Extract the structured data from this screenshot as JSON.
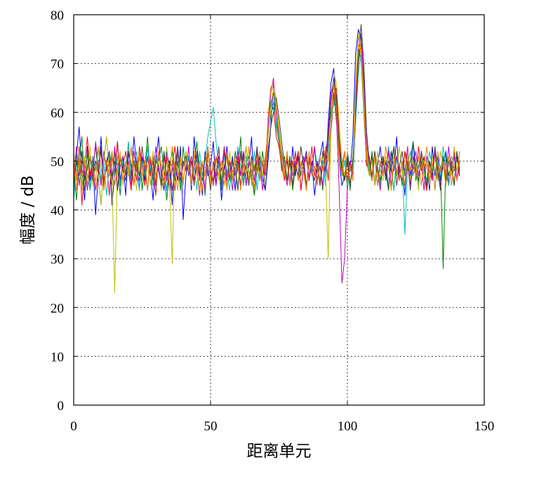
{
  "chart_data": {
    "type": "line",
    "xlabel": "距离单元",
    "ylabel": "幅度 / dB",
    "xlim": [
      0,
      150
    ],
    "ylim": [
      0,
      80
    ],
    "x_ticks": [
      "0",
      "50",
      "100",
      "150"
    ],
    "y_ticks": [
      "0",
      "10",
      "20",
      "30",
      "40",
      "50",
      "60",
      "70",
      "80"
    ],
    "grid": true,
    "x_range_of_data": [
      0,
      141
    ],
    "peaks": [
      {
        "x": 73,
        "y": 67
      },
      {
        "x": 95,
        "y": 69
      },
      {
        "x": 105,
        "y": 78
      }
    ],
    "series": [
      {
        "color": "#0000ff",
        "values": [
          44,
          51,
          57,
          48,
          42,
          53,
          46,
          50,
          39,
          47,
          55,
          44,
          50,
          52,
          41,
          48,
          54,
          46,
          50,
          43,
          52,
          47,
          55,
          49,
          44,
          51,
          46,
          53,
          48,
          42,
          50,
          55,
          47,
          44,
          52,
          49,
          41,
          50,
          46,
          53,
          38,
          47,
          51,
          44,
          55,
          48,
          50,
          43,
          52,
          47,
          49,
          54,
          45,
          50,
          42,
          48,
          53,
          46,
          51,
          44,
          50,
          47,
          52,
          45,
          49,
          55,
          43,
          48,
          51,
          46,
          44,
          50,
          57,
          66,
          60,
          55,
          52,
          48,
          50,
          45,
          53,
          47,
          51,
          44,
          49,
          52,
          46,
          50,
          43,
          48,
          51,
          54,
          47,
          58,
          66,
          69,
          62,
          50,
          45,
          47,
          52,
          48,
          55,
          72,
          77,
          75,
          66,
          52,
          48,
          51,
          45,
          49,
          53,
          47,
          50,
          44,
          52,
          48,
          55,
          46,
          50,
          43,
          51,
          47,
          54,
          49,
          45,
          52,
          48,
          50,
          44,
          53,
          47,
          51,
          46,
          49,
          52,
          45,
          50,
          48,
          51,
          47
        ]
      },
      {
        "color": "#008000",
        "values": [
          48,
          42,
          50,
          55,
          46,
          52,
          44,
          49,
          53,
          47,
          41,
          50,
          55,
          48,
          45,
          52,
          49,
          43,
          51,
          47,
          54,
          46,
          50,
          48,
          52,
          44,
          49,
          55,
          47,
          51,
          45,
          50,
          53,
          48,
          42,
          49,
          52,
          46,
          50,
          44,
          53,
          48,
          51,
          45,
          49,
          54,
          47,
          50,
          43,
          52,
          48,
          46,
          51,
          49,
          44,
          53,
          47,
          50,
          46,
          52,
          48,
          55,
          45,
          49,
          51,
          47,
          43,
          50,
          46,
          52,
          48,
          58,
          62,
          64,
          57,
          54,
          48,
          51,
          46,
          50,
          44,
          49,
          52,
          47,
          51,
          45,
          50,
          48,
          53,
          46,
          49,
          44,
          52,
          55,
          60,
          64,
          58,
          52,
          48,
          46,
          50,
          44,
          51,
          60,
          73,
          71,
          60,
          50,
          47,
          52,
          45,
          49,
          46,
          51,
          48,
          44,
          50,
          53,
          47,
          49,
          45,
          52,
          48,
          50,
          54,
          46,
          49,
          51,
          47,
          44,
          50,
          48,
          52,
          46,
          49,
          28,
          51,
          47,
          50,
          45,
          52,
          48
        ]
      },
      {
        "color": "#ff0000",
        "values": [
          50,
          46,
          53,
          41,
          49,
          55,
          47,
          51,
          44,
          48,
          52,
          46,
          50,
          43,
          51,
          47,
          54,
          45,
          49,
          52,
          48,
          44,
          50,
          46,
          53,
          49,
          45,
          51,
          47,
          50,
          43,
          52,
          48,
          46,
          51,
          44,
          49,
          53,
          47,
          50,
          45,
          52,
          48,
          51,
          46,
          49,
          43,
          50,
          47,
          53,
          48,
          45,
          51,
          49,
          46,
          52,
          44,
          50,
          48,
          47,
          51,
          45,
          49,
          53,
          46,
          50,
          44,
          52,
          48,
          50,
          47,
          55,
          60,
          61,
          55,
          53,
          49,
          46,
          51,
          45,
          50,
          48,
          52,
          44,
          49,
          51,
          46,
          53,
          47,
          50,
          45,
          49,
          52,
          46,
          56,
          63,
          65,
          55,
          49,
          52,
          46,
          50,
          47,
          62,
          70,
          74,
          62,
          49,
          51,
          46,
          52,
          48,
          45,
          50,
          47,
          53,
          49,
          44,
          51,
          48,
          46,
          52,
          50,
          45,
          49,
          47,
          53,
          48,
          51,
          44,
          50,
          46,
          52,
          49,
          47,
          51,
          45,
          50,
          48,
          52,
          46,
          49
        ]
      },
      {
        "color": "#00bfbf",
        "values": [
          42,
          49,
          52,
          45,
          50,
          47,
          44,
          51,
          48,
          53,
          46,
          50,
          43,
          49,
          52,
          47,
          51,
          45,
          50,
          48,
          54,
          46,
          49,
          52,
          44,
          50,
          47,
          53,
          49,
          45,
          51,
          48,
          46,
          52,
          44,
          50,
          49,
          47,
          53,
          45,
          50,
          48,
          51,
          46,
          49,
          44,
          52,
          47,
          50,
          55,
          58,
          61,
          54,
          49,
          46,
          51,
          48,
          44,
          50,
          47,
          53,
          49,
          45,
          51,
          48,
          46,
          52,
          44,
          50,
          47,
          51,
          56,
          59,
          62,
          58,
          55,
          50,
          47,
          52,
          45,
          49,
          51,
          46,
          50,
          48,
          44,
          51,
          47,
          53,
          49,
          46,
          50,
          45,
          52,
          58,
          62,
          60,
          51,
          47,
          50,
          44,
          49,
          46,
          58,
          68,
          72,
          64,
          52,
          48,
          46,
          51,
          49,
          45,
          50,
          47,
          53,
          48,
          44,
          51,
          46,
          50,
          35,
          49,
          52,
          47,
          50,
          45,
          51,
          48,
          46,
          52,
          49,
          44,
          50,
          47,
          53,
          48,
          45,
          51,
          49,
          46,
          52
        ]
      },
      {
        "color": "#bf00bf",
        "values": [
          47,
          53,
          45,
          50,
          48,
          44,
          51,
          47,
          54,
          49,
          45,
          52,
          48,
          50,
          46,
          53,
          44,
          49,
          51,
          47,
          50,
          45,
          52,
          48,
          46,
          51,
          49,
          44,
          50,
          47,
          53,
          48,
          45,
          51,
          46,
          50,
          49,
          44,
          52,
          47,
          50,
          48,
          53,
          45,
          49,
          51,
          46,
          50,
          44,
          52,
          47,
          49,
          45,
          51,
          48,
          53,
          46,
          50,
          44,
          49,
          52,
          47,
          51,
          45,
          50,
          48,
          46,
          52,
          49,
          44,
          50,
          57,
          64,
          67,
          60,
          56,
          51,
          48,
          45,
          50,
          47,
          52,
          46,
          49,
          51,
          44,
          50,
          48,
          53,
          46,
          49,
          45,
          51,
          56,
          64,
          66,
          59,
          44,
          25,
          30,
          45,
          50,
          47,
          64,
          75,
          76,
          67,
          54,
          49,
          46,
          51,
          48,
          44,
          50,
          47,
          52,
          45,
          49,
          51,
          46,
          50,
          48,
          53,
          45,
          49,
          52,
          47,
          50,
          44,
          51,
          48,
          46,
          52,
          49,
          45,
          50,
          47,
          53,
          48,
          51,
          46,
          50
        ]
      },
      {
        "color": "#bfbf00",
        "values": [
          52,
          46,
          49,
          44,
          51,
          48,
          53,
          45,
          50,
          47,
          41,
          50,
          55,
          48,
          46,
          23,
          49,
          52,
          45,
          50,
          47,
          53,
          48,
          44,
          51,
          46,
          50,
          49,
          45,
          52,
          47,
          50,
          44,
          48,
          53,
          46,
          29,
          51,
          47,
          50,
          45,
          52,
          48,
          46,
          51,
          49,
          44,
          50,
          47,
          53,
          45,
          49,
          51,
          46,
          50,
          48,
          44,
          52,
          47,
          49,
          45,
          51,
          48,
          53,
          46,
          50,
          44,
          49,
          52,
          47,
          51,
          55,
          61,
          65,
          63,
          57,
          52,
          48,
          46,
          51,
          45,
          50,
          47,
          53,
          49,
          44,
          51,
          48,
          46,
          50,
          45,
          52,
          48,
          30,
          58,
          68,
          66,
          58,
          50,
          47,
          52,
          45,
          49,
          66,
          76,
          73,
          63,
          51,
          47,
          50,
          45,
          52,
          48,
          46,
          51,
          49,
          44,
          50,
          47,
          53,
          48,
          45,
          51,
          46,
          50,
          49,
          44,
          52,
          47,
          50,
          45,
          51,
          48,
          46,
          52,
          49,
          45,
          50,
          47,
          53,
          48,
          51
        ]
      },
      {
        "color": "#404040",
        "values": [
          45,
          50,
          47,
          52,
          44,
          49,
          51,
          46,
          50,
          48,
          53,
          45,
          49,
          52,
          47,
          50,
          44,
          51,
          48,
          46,
          52,
          49,
          45,
          50,
          47,
          53,
          48,
          44,
          51,
          46,
          50,
          49,
          45,
          52,
          47,
          50,
          44,
          48,
          53,
          46,
          49,
          51,
          47,
          50,
          45,
          52,
          48,
          46,
          51,
          49,
          44,
          50,
          47,
          53,
          45,
          49,
          51,
          46,
          50,
          48,
          44,
          52,
          47,
          49,
          45,
          51,
          48,
          53,
          46,
          50,
          44,
          52,
          57,
          60,
          63,
          59,
          54,
          49,
          46,
          51,
          45,
          50,
          47,
          53,
          49,
          44,
          51,
          48,
          46,
          50,
          45,
          52,
          48,
          54,
          62,
          67,
          63,
          53,
          49,
          46,
          51,
          45,
          50,
          60,
          70,
          78,
          70,
          56,
          50,
          47,
          52,
          45,
          49,
          51,
          46,
          50,
          48,
          53,
          45,
          49,
          52,
          47,
          50,
          44,
          51,
          48,
          46,
          52,
          49,
          45,
          50,
          47,
          53,
          48,
          44,
          51,
          46,
          50,
          49,
          45,
          52,
          47
        ]
      },
      {
        "color": "#ff7f00",
        "values": [
          49,
          44,
          52,
          47,
          50,
          45,
          51,
          48,
          46,
          53,
          49,
          44,
          50,
          47,
          52,
          45,
          49,
          51,
          46,
          50,
          48,
          53,
          45,
          49,
          52,
          47,
          50,
          44,
          51,
          48,
          46,
          52,
          49,
          45,
          50,
          47,
          53,
          48,
          44,
          51,
          46,
          50,
          49,
          45,
          52,
          47,
          50,
          44,
          48,
          53,
          46,
          49,
          51,
          47,
          50,
          45,
          52,
          48,
          46,
          51,
          49,
          44,
          50,
          47,
          53,
          45,
          49,
          51,
          46,
          50,
          48,
          59,
          65,
          66,
          61,
          56,
          50,
          47,
          52,
          45,
          49,
          51,
          46,
          50,
          48,
          44,
          52,
          47,
          49,
          45,
          51,
          48,
          53,
          50,
          57,
          66,
          61,
          50,
          47,
          52,
          45,
          49,
          46,
          64,
          74,
          72,
          61,
          52,
          49,
          46,
          51,
          45,
          50,
          47,
          53,
          49,
          44,
          51,
          48,
          46,
          50,
          45,
          52,
          48,
          50,
          47,
          51,
          45,
          49,
          53,
          46,
          50,
          44,
          52,
          48,
          50,
          47,
          51,
          45,
          49,
          46,
          52
        ]
      }
    ]
  }
}
